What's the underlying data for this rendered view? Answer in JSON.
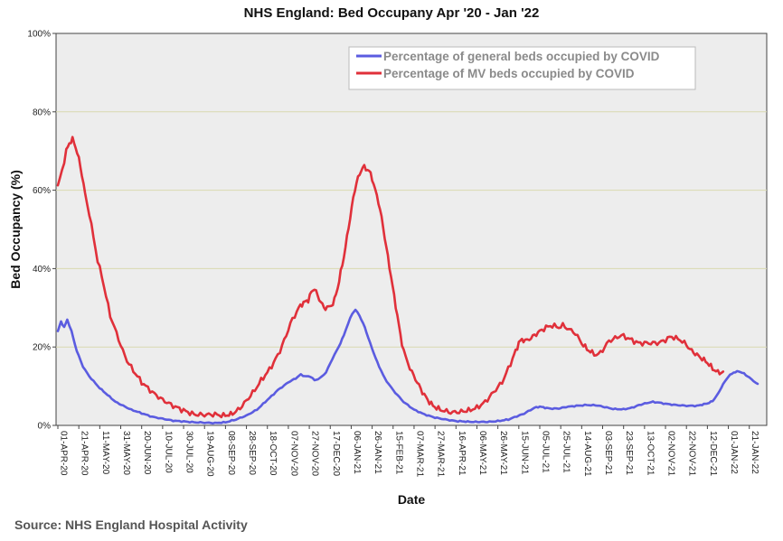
{
  "chart_data": {
    "type": "line",
    "title": "NHS England: Bed Occupany Apr '20 - Jan '22",
    "xlabel": "Date",
    "ylabel": "Bed Occupancy (%)",
    "ylim": [
      0,
      100
    ],
    "yticks": [
      "0%",
      "20%",
      "40%",
      "60%",
      "80%",
      "100%"
    ],
    "x_tick_labels": [
      "01-APR-20",
      "21-APR-20",
      "11-MAY-20",
      "31-MAY-20",
      "20-JUN-20",
      "10-JUL-20",
      "30-JUL-20",
      "19-AUG-20",
      "08-SEP-20",
      "28-SEP-20",
      "18-OCT-20",
      "07-NOV-20",
      "27-NOV-20",
      "17-DEC-20",
      "06-JAN-21",
      "26-JAN-21",
      "15-FEB-21",
      "07-MAR-21",
      "27-MAR-21",
      "16-APR-21",
      "06-MAY-21",
      "26-MAY-21",
      "15-JUN-21",
      "05-JUL-21",
      "25-JUL-21",
      "14-AUG-21",
      "03-SEP-21",
      "23-SEP-21",
      "13-OCT-21",
      "02-NOV-21",
      "22-NOV-21",
      "12-DEC-21",
      "01-JAN-22",
      "21-JAN-22"
    ],
    "x_range_days": [
      0,
      668
    ],
    "gridlines": "horizontal",
    "legend_position": "top-right",
    "series": [
      {
        "name": "Percentage of general beds occupied by COVID",
        "color": "#5b5ce0",
        "points": [
          [
            0,
            24
          ],
          [
            3,
            26.5
          ],
          [
            6,
            25
          ],
          [
            9,
            27
          ],
          [
            13,
            24
          ],
          [
            18,
            19
          ],
          [
            24,
            15
          ],
          [
            30,
            12.5
          ],
          [
            40,
            9.5
          ],
          [
            55,
            6
          ],
          [
            70,
            4
          ],
          [
            90,
            2.2
          ],
          [
            110,
            1.2
          ],
          [
            130,
            0.8
          ],
          [
            150,
            0.6
          ],
          [
            160,
            0.8
          ],
          [
            170,
            1.5
          ],
          [
            180,
            2.5
          ],
          [
            190,
            4
          ],
          [
            200,
            6.5
          ],
          [
            210,
            9
          ],
          [
            220,
            11
          ],
          [
            227,
            12
          ],
          [
            232,
            13
          ],
          [
            236,
            12.5
          ],
          [
            241,
            12.5
          ],
          [
            245,
            11.5
          ],
          [
            250,
            12
          ],
          [
            256,
            13.5
          ],
          [
            262,
            17
          ],
          [
            268,
            20
          ],
          [
            273,
            23
          ],
          [
            277,
            26
          ],
          [
            281,
            28.5
          ],
          [
            284,
            29.5
          ],
          [
            288,
            28
          ],
          [
            293,
            25
          ],
          [
            298,
            21
          ],
          [
            305,
            16
          ],
          [
            312,
            12
          ],
          [
            320,
            9
          ],
          [
            330,
            6
          ],
          [
            340,
            4
          ],
          [
            350,
            2.8
          ],
          [
            360,
            2
          ],
          [
            370,
            1.5
          ],
          [
            380,
            1.1
          ],
          [
            395,
            0.9
          ],
          [
            410,
            0.9
          ],
          [
            420,
            1.1
          ],
          [
            430,
            1.5
          ],
          [
            440,
            2.5
          ],
          [
            445,
            3
          ],
          [
            455,
            4.5
          ],
          [
            460,
            4.8
          ],
          [
            465,
            4.5
          ],
          [
            470,
            4.3
          ],
          [
            478,
            4.3
          ],
          [
            485,
            4.7
          ],
          [
            495,
            5
          ],
          [
            505,
            5.2
          ],
          [
            515,
            5.1
          ],
          [
            520,
            4.8
          ],
          [
            530,
            4.2
          ],
          [
            540,
            4.1
          ],
          [
            548,
            4.5
          ],
          [
            555,
            5.2
          ],
          [
            562,
            5.7
          ],
          [
            568,
            6
          ],
          [
            574,
            5.8
          ],
          [
            580,
            5.5
          ],
          [
            590,
            5.2
          ],
          [
            600,
            5
          ],
          [
            610,
            5
          ],
          [
            615,
            5.3
          ],
          [
            620,
            5.6
          ],
          [
            625,
            6.2
          ],
          [
            630,
            8
          ],
          [
            635,
            10.5
          ],
          [
            640,
            12.5
          ],
          [
            645,
            13.5
          ],
          [
            650,
            13.8
          ],
          [
            655,
            13.2
          ],
          [
            660,
            12.2
          ],
          [
            668,
            10.5
          ]
        ]
      },
      {
        "name": "Percentage of MV beds occupied by COVID",
        "color": "#e0303a",
        "points": [
          [
            0,
            61
          ],
          [
            4,
            65
          ],
          [
            8,
            70
          ],
          [
            11,
            72
          ],
          [
            14,
            73
          ],
          [
            17,
            71
          ],
          [
            20,
            68
          ],
          [
            23,
            64
          ],
          [
            26,
            59
          ],
          [
            30,
            54
          ],
          [
            34,
            48
          ],
          [
            38,
            42
          ],
          [
            42,
            38
          ],
          [
            46,
            33
          ],
          [
            50,
            28
          ],
          [
            54,
            25
          ],
          [
            58,
            22
          ],
          [
            62,
            19
          ],
          [
            66,
            16.5
          ],
          [
            72,
            14
          ],
          [
            80,
            11
          ],
          [
            90,
            8.5
          ],
          [
            100,
            6.5
          ],
          [
            110,
            5
          ],
          [
            120,
            3.8
          ],
          [
            130,
            2.8
          ],
          [
            140,
            2.7
          ],
          [
            150,
            2.8
          ],
          [
            158,
            2.5
          ],
          [
            165,
            2.8
          ],
          [
            170,
            3.5
          ],
          [
            176,
            5
          ],
          [
            182,
            7
          ],
          [
            188,
            9
          ],
          [
            194,
            11.5
          ],
          [
            200,
            13.5
          ],
          [
            206,
            16
          ],
          [
            212,
            19
          ],
          [
            218,
            23
          ],
          [
            222,
            26
          ],
          [
            226,
            28
          ],
          [
            230,
            30
          ],
          [
            233,
            31
          ],
          [
            236,
            31.5
          ],
          [
            239,
            32
          ],
          [
            242,
            34
          ],
          [
            245,
            35
          ],
          [
            248,
            33
          ],
          [
            251,
            31.5
          ],
          [
            254,
            30
          ],
          [
            257,
            30
          ],
          [
            261,
            30.5
          ],
          [
            264,
            32
          ],
          [
            267,
            35
          ],
          [
            270,
            39
          ],
          [
            273,
            43
          ],
          [
            276,
            48
          ],
          [
            279,
            53
          ],
          [
            282,
            58
          ],
          [
            285,
            62
          ],
          [
            288,
            64
          ],
          [
            291,
            66
          ],
          [
            294,
            65.5
          ],
          [
            297,
            65
          ],
          [
            300,
            63
          ],
          [
            303,
            60
          ],
          [
            306,
            57
          ],
          [
            309,
            53
          ],
          [
            312,
            48
          ],
          [
            315,
            43
          ],
          [
            318,
            38
          ],
          [
            321,
            33
          ],
          [
            324,
            28
          ],
          [
            327,
            23
          ],
          [
            330,
            19
          ],
          [
            334,
            16
          ],
          [
            338,
            13.5
          ],
          [
            343,
            11
          ],
          [
            348,
            8.5
          ],
          [
            353,
            6.5
          ],
          [
            358,
            5
          ],
          [
            365,
            4
          ],
          [
            375,
            3.3
          ],
          [
            385,
            3.5
          ],
          [
            392,
            3.8
          ],
          [
            400,
            4.5
          ],
          [
            408,
            6
          ],
          [
            416,
            8.5
          ],
          [
            424,
            11
          ],
          [
            430,
            14.5
          ],
          [
            434,
            17
          ],
          [
            437,
            19
          ],
          [
            440,
            21
          ],
          [
            443,
            22
          ],
          [
            446,
            21.5
          ],
          [
            450,
            22
          ],
          [
            455,
            23
          ],
          [
            460,
            24
          ],
          [
            466,
            25
          ],
          [
            472,
            25.5
          ],
          [
            478,
            25
          ],
          [
            482,
            25.5
          ],
          [
            488,
            24.5
          ],
          [
            494,
            23.5
          ],
          [
            500,
            21
          ],
          [
            505,
            19.5
          ],
          [
            510,
            18.5
          ],
          [
            514,
            18
          ],
          [
            518,
            18.5
          ],
          [
            522,
            20
          ],
          [
            526,
            21.5
          ],
          [
            530,
            22
          ],
          [
            534,
            22.5
          ],
          [
            538,
            23
          ],
          [
            542,
            22.5
          ],
          [
            546,
            22
          ],
          [
            550,
            21.5
          ],
          [
            554,
            21
          ],
          [
            560,
            21
          ],
          [
            566,
            21
          ],
          [
            572,
            21
          ],
          [
            578,
            21.5
          ],
          [
            584,
            22.5
          ],
          [
            588,
            22.5
          ],
          [
            592,
            22
          ],
          [
            596,
            21.5
          ],
          [
            600,
            20.5
          ],
          [
            605,
            19
          ],
          [
            610,
            18
          ],
          [
            615,
            17
          ],
          [
            620,
            16
          ],
          [
            625,
            14.5
          ],
          [
            630,
            13.5
          ],
          [
            635,
            13.5
          ]
        ]
      }
    ]
  },
  "source_note": "Source: NHS England Hospital Activity"
}
